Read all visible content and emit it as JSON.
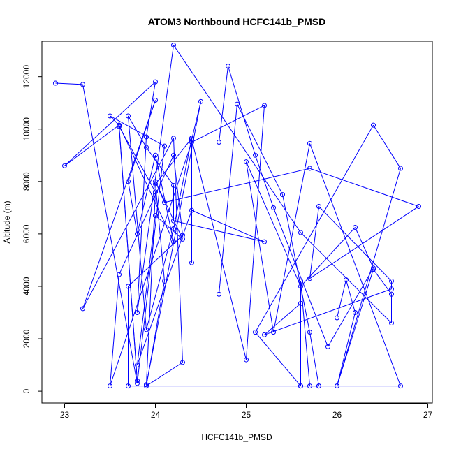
{
  "chart_data": {
    "type": "line",
    "title": "ATOM3 Northbound HCFC141b_PMSD",
    "xlabel": "HCFC141b_PMSD",
    "ylabel": "Altitude (m)",
    "xlim": [
      22.75,
      27.05
    ],
    "ylim": [
      -450,
      13350
    ],
    "x_ticks": [
      23,
      24,
      25,
      26,
      27
    ],
    "y_ticks": [
      0,
      2000,
      4000,
      6000,
      8000,
      10000,
      12000
    ],
    "grid": false,
    "legend": "none",
    "line_color": "#0000ff",
    "marker": "open-circle",
    "series": [
      {
        "x": [
          22.9,
          23.2,
          23.8,
          24.1,
          23.5,
          23.6,
          23.8,
          23.6,
          24.0,
          23.9,
          24.5,
          24.4,
          25.0,
          25.2,
          24.4,
          23.5,
          23.6,
          24.2,
          24.3,
          23.7,
          23.7,
          25.6,
          25.8,
          26.7,
          25.7,
          25.3,
          25.0,
          25.6,
          26.2,
          26.4,
          25.9,
          25.3,
          25.1,
          24.8,
          24.7,
          24.7,
          24.9,
          25.4,
          25.7,
          25.8,
          25.7,
          25.6,
          25.6,
          25.1,
          26.4,
          26.7,
          26.0,
          26.0,
          26.1,
          26.2,
          26.0,
          26.4,
          26.6,
          26.6,
          25.6,
          24.2,
          23.8,
          23.9,
          24.0,
          23.0,
          23.6,
          24.2,
          24.0,
          23.8,
          23.7,
          24.0,
          23.2,
          24.2,
          24.3,
          23.9,
          24.1,
          24.0,
          24.4,
          24.4,
          24.4,
          24.2,
          23.9,
          23.7,
          23.9,
          24.2,
          24.2,
          25.2,
          24.4,
          23.8,
          24.0,
          24.3,
          24.0,
          24.1,
          25.7,
          26.9,
          25.7,
          25.8,
          26.6,
          26.6,
          25.2,
          25.6,
          25.6
        ],
        "y": [
          11750,
          11700,
          300,
          9350,
          10500,
          10150,
          400,
          10100,
          7600,
          250,
          11050,
          9600,
          1200,
          10900,
          9500,
          200,
          4450,
          9000,
          5950,
          4000,
          200,
          200,
          200,
          200,
          9450,
          2250,
          8750,
          4000,
          6250,
          4700,
          1700,
          7000,
          9000,
          12400,
          9500,
          3700,
          10950,
          7500,
          2250,
          200,
          200,
          4200,
          200,
          2250,
          10150,
          8500,
          200,
          2800,
          4250,
          3000,
          200,
          4650,
          3700,
          2600,
          6050,
          13200,
          3000,
          9700,
          11800,
          8600,
          10150,
          5700,
          9000,
          6000,
          8000,
          11100,
          3150,
          9650,
          1100,
          200,
          4200,
          7900,
          9650,
          4900,
          9650,
          6200,
          2350,
          10500,
          9300,
          7850,
          6500,
          5700,
          6900,
          1000,
          6700,
          5800,
          8000,
          7200,
          8500,
          7050,
          4300,
          7050,
          4200,
          3900,
          2150,
          3350,
          4200
        ]
      }
    ]
  }
}
